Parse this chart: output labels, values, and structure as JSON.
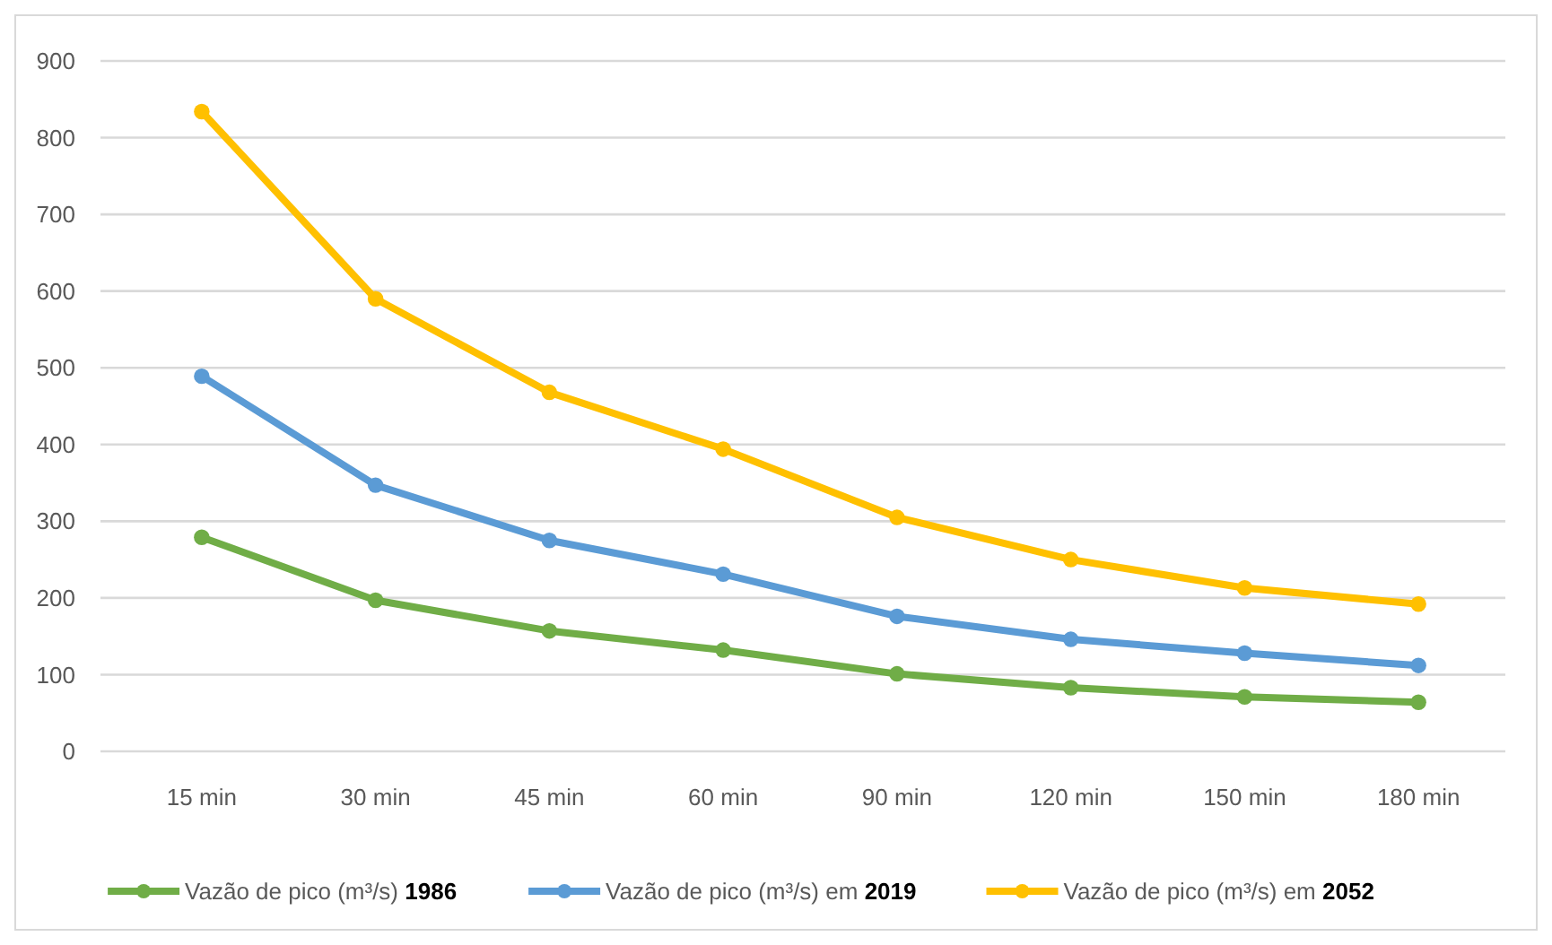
{
  "chart_data": {
    "type": "line",
    "categories": [
      "15 min",
      "30 min",
      "45 min",
      "60 min",
      "90 min",
      "120 min",
      "150 min",
      "180 min"
    ],
    "series": [
      {
        "name": "Vazão de pico (m³/s) 1986",
        "color": "#70ad47",
        "values": [
          279,
          197,
          157,
          132,
          101,
          83,
          71,
          64
        ]
      },
      {
        "name": "Vazão de pico (m³/s) em 2019",
        "color": "#5b9bd5",
        "values": [
          489,
          347,
          275,
          231,
          176,
          146,
          128,
          112
        ]
      },
      {
        "name": "Vazão de pico (m³/s) em 2052",
        "color": "#ffc000",
        "values": [
          834,
          590,
          468,
          394,
          305,
          250,
          213,
          192
        ]
      }
    ],
    "ylim": [
      0,
      900
    ],
    "yticks": [
      0,
      100,
      200,
      300,
      400,
      500,
      600,
      700,
      800,
      900
    ],
    "grid": "y",
    "legend": "bottom",
    "marker": "circle",
    "line_style": "solid"
  }
}
